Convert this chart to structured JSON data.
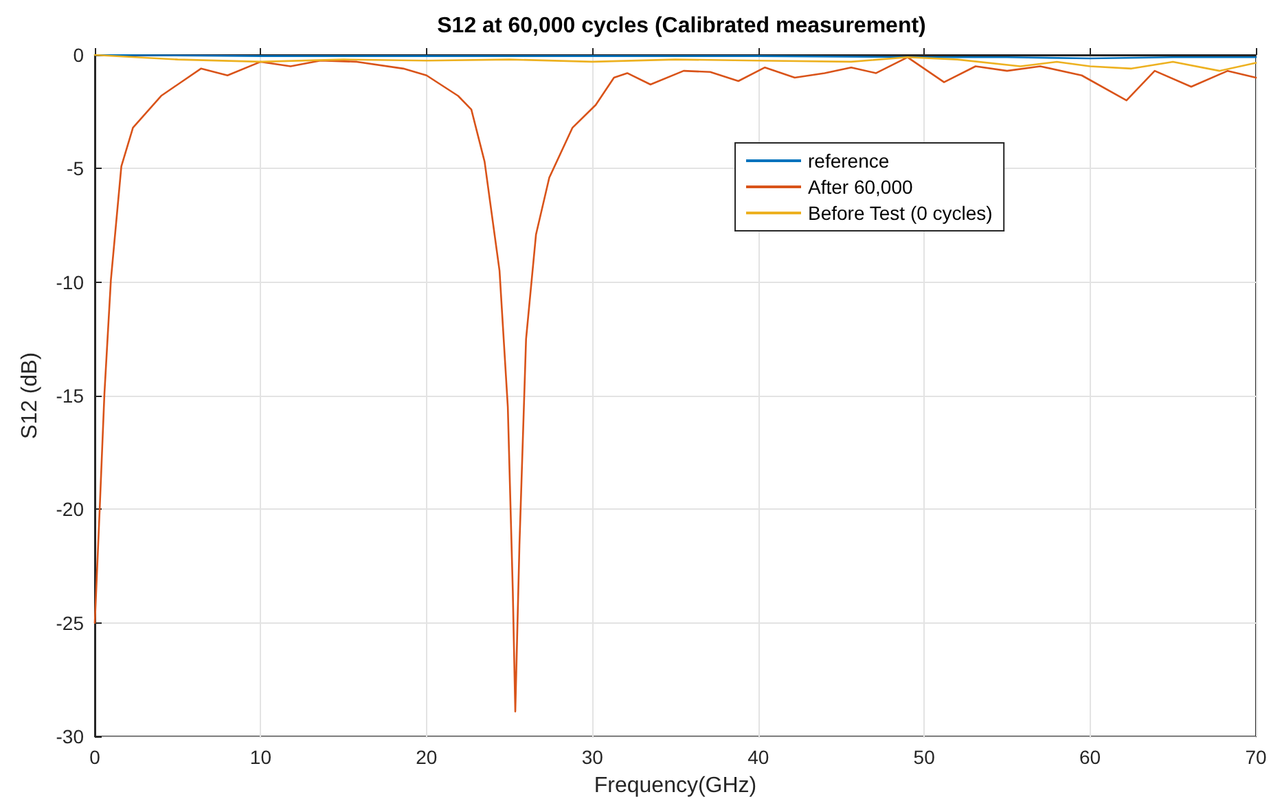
{
  "chart_data": {
    "type": "line",
    "title": "S12 at 60,000 cycles (Calibrated measurement)",
    "xlabel": "Frequency(GHz)",
    "ylabel": "S12 (dB)",
    "xlim": [
      0,
      70
    ],
    "xticks": [
      0,
      10,
      20,
      30,
      40,
      50,
      60,
      70
    ],
    "ylim": [
      -30,
      0
    ],
    "yticks": [
      -30,
      -25,
      -20,
      -15,
      -10,
      -5,
      0
    ],
    "grid": true,
    "legend": "top right",
    "marker": "none",
    "line_style": "solid",
    "series": [
      {
        "name": "reference",
        "color": "#0072bd",
        "x": [
          0,
          10,
          20,
          30,
          40,
          50,
          55,
          60,
          65,
          70
        ],
        "values": [
          0,
          -0.05,
          -0.05,
          -0.05,
          -0.05,
          -0.1,
          -0.1,
          -0.15,
          -0.1,
          -0.1
        ]
      },
      {
        "name": "After 60,000",
        "color": "#d95319",
        "x": [
          0,
          0.3,
          0.58,
          0.97,
          1.6,
          2.3,
          4.0,
          4.8,
          6.4,
          8.0,
          10,
          11.8,
          13.6,
          15.8,
          18.6,
          20,
          21.9,
          22.7,
          23.5,
          24.4,
          24.9,
          25.2,
          25.35,
          25.6,
          26.0,
          26.6,
          27.4,
          28.8,
          30.2,
          31.3,
          32.1,
          33.5,
          35.5,
          37.1,
          38.8,
          40.4,
          42.2,
          44,
          45.6,
          47.1,
          49,
          51.2,
          53.1,
          55,
          57,
          59.5,
          62.2,
          63.9,
          66.1,
          68.3,
          70
        ],
        "values": [
          -25,
          -19.9,
          -14.9,
          -9.9,
          -4.9,
          -3.2,
          -1.8,
          -1.4,
          -0.6,
          -0.9,
          -0.3,
          -0.5,
          -0.25,
          -0.3,
          -0.6,
          -0.9,
          -1.8,
          -2.4,
          -4.7,
          -9.5,
          -15.5,
          -23.6,
          -28.9,
          -21.6,
          -12.5,
          -7.9,
          -5.4,
          -3.2,
          -2.2,
          -1.0,
          -0.8,
          -1.3,
          -0.7,
          -0.75,
          -1.15,
          -0.55,
          -1.0,
          -0.8,
          -0.55,
          -0.8,
          -0.1,
          -1.2,
          -0.5,
          -0.7,
          -0.5,
          -0.9,
          -2.0,
          -0.7,
          -1.4,
          -0.7,
          -1.0
        ]
      },
      {
        "name": "Before Test (0 cycles)",
        "color": "#edb120",
        "x": [
          0,
          5,
          10,
          15,
          20,
          25,
          30,
          35,
          40,
          45.6,
          49,
          52,
          55.8,
          58,
          60,
          62.5,
          65,
          67.8,
          70
        ],
        "values": [
          0,
          -0.2,
          -0.3,
          -0.2,
          -0.25,
          -0.2,
          -0.3,
          -0.2,
          -0.25,
          -0.3,
          -0.1,
          -0.2,
          -0.5,
          -0.3,
          -0.5,
          -0.6,
          -0.3,
          -0.7,
          -0.35
        ]
      }
    ]
  }
}
